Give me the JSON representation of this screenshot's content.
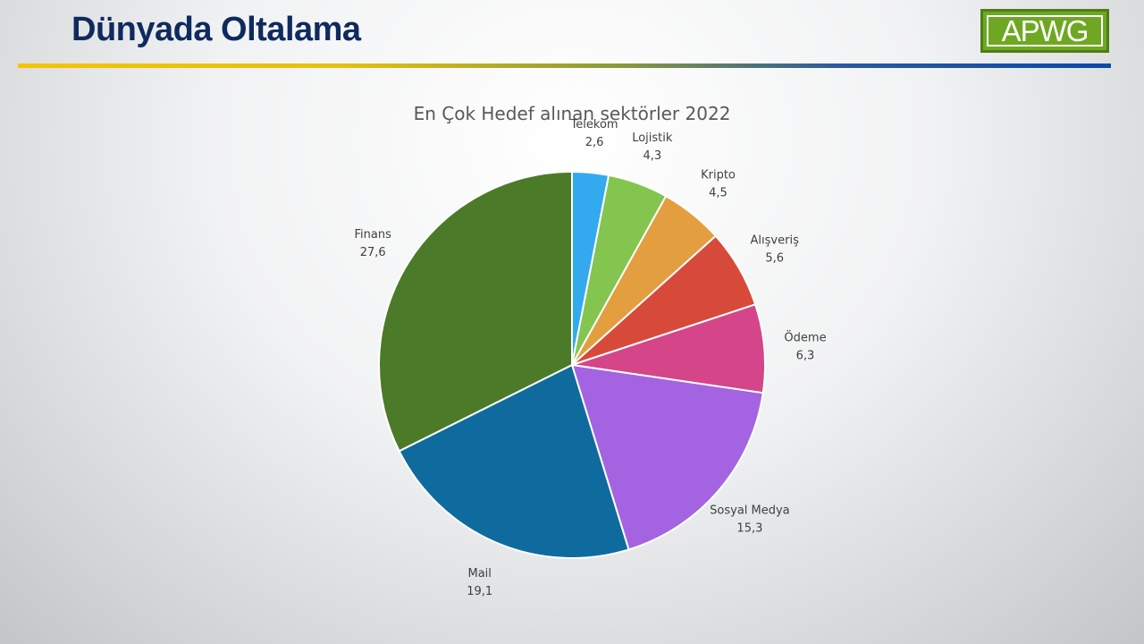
{
  "slide": {
    "title": "Dünyada Oltalama",
    "logo_text": "APWG"
  },
  "colors": {
    "title": "#0f2a5e",
    "logo_green": "#6ea823"
  },
  "chart_data": {
    "type": "pie",
    "title": "En Çok Hedef alınan sektörler 2022",
    "start": "12 o'clock, clockwise",
    "slices": [
      {
        "name": "Telekom",
        "value_label": "2,6",
        "value": 2.6,
        "color": "#33aaf0"
      },
      {
        "name": "Lojistik",
        "value_label": "4,3",
        "value": 4.3,
        "color": "#83c54f"
      },
      {
        "name": "Kripto",
        "value_label": "4,5",
        "value": 4.5,
        "color": "#e39e3f"
      },
      {
        "name": "Alışveriş",
        "value_label": "5,6",
        "value": 5.6,
        "color": "#d74a3a"
      },
      {
        "name": "Ödeme",
        "value_label": "6,3",
        "value": 6.3,
        "color": "#d5458a"
      },
      {
        "name": "Sosyal Medya",
        "value_label": "15,3",
        "value": 15.3,
        "color": "#a464e2"
      },
      {
        "name": "Mail",
        "value_label": "19,1",
        "value": 19.1,
        "color": "#0f6b9e"
      },
      {
        "name": "Finans",
        "value_label": "27,6",
        "value": 27.6,
        "color": "#4b7b28"
      }
    ]
  }
}
